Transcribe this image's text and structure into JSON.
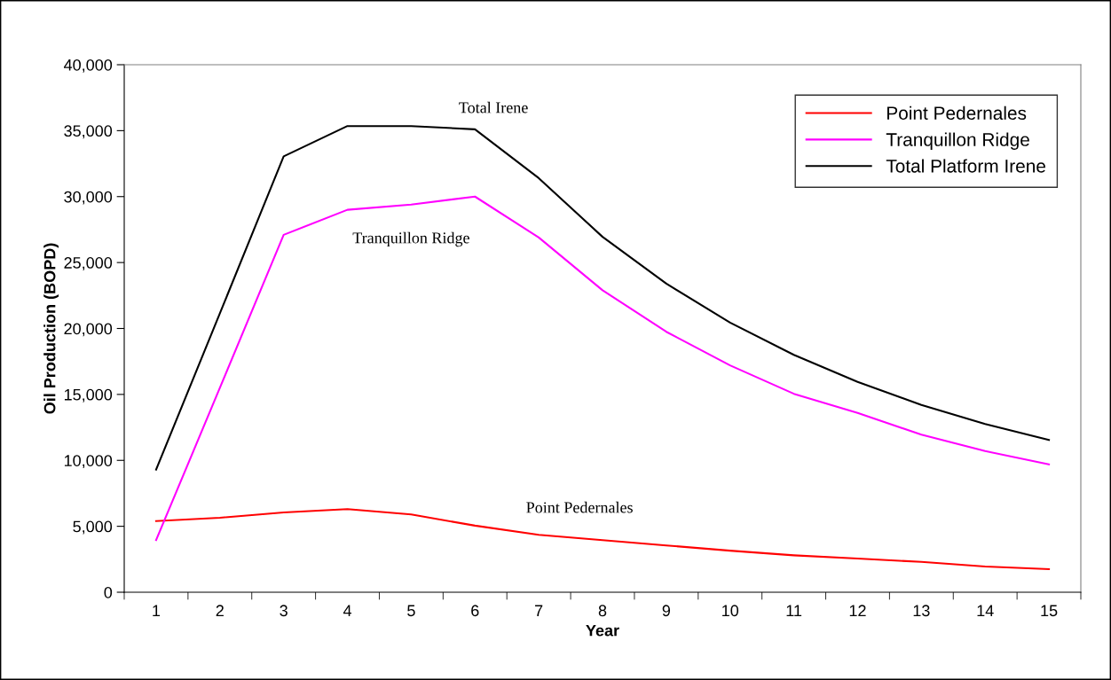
{
  "chart_data": {
    "type": "line",
    "xlabel": "Year",
    "ylabel": "Oil Production (BOPD)",
    "categories": [
      "1",
      "2",
      "3",
      "4",
      "5",
      "6",
      "7",
      "8",
      "9",
      "10",
      "11",
      "12",
      "13",
      "14",
      "15"
    ],
    "series": [
      {
        "name": "Point Pedernales",
        "color": "#ff0000",
        "values": [
          5400,
          5650,
          6050,
          6300,
          5900,
          5050,
          4350,
          3950,
          3550,
          3150,
          2800,
          2550,
          2300,
          1950,
          1750
        ]
      },
      {
        "name": "Tranquillon Ridge",
        "color": "#ff00ff",
        "values": [
          3950,
          15500,
          27100,
          29000,
          29400,
          30000,
          26900,
          22900,
          19750,
          17200,
          15050,
          13600,
          11950,
          10700,
          9700
        ]
      },
      {
        "name": "Total Platform Irene",
        "color": "#000000",
        "values": [
          9300,
          21150,
          33050,
          35350,
          35350,
          35100,
          31400,
          26950,
          23400,
          20450,
          18000,
          15950,
          14200,
          12750,
          11550
        ]
      }
    ],
    "ylim": [
      0,
      40000
    ],
    "yticks": [
      {
        "value": 0,
        "label": "0"
      },
      {
        "value": 5000,
        "label": "5,000"
      },
      {
        "value": 10000,
        "label": "10,000"
      },
      {
        "value": 15000,
        "label": "15,000"
      },
      {
        "value": 20000,
        "label": "20,000"
      },
      {
        "value": 25000,
        "label": "25,000"
      },
      {
        "value": 30000,
        "label": "30,000"
      },
      {
        "value": 35000,
        "label": "35,000"
      },
      {
        "value": 40000,
        "label": "40,000"
      }
    ],
    "annotations": [
      "Total Irene",
      "Tranquillon Ridge",
      "Point Pedernales"
    ],
    "legend": "top right",
    "grid": false,
    "marker": "none",
    "line_style": "solid"
  }
}
